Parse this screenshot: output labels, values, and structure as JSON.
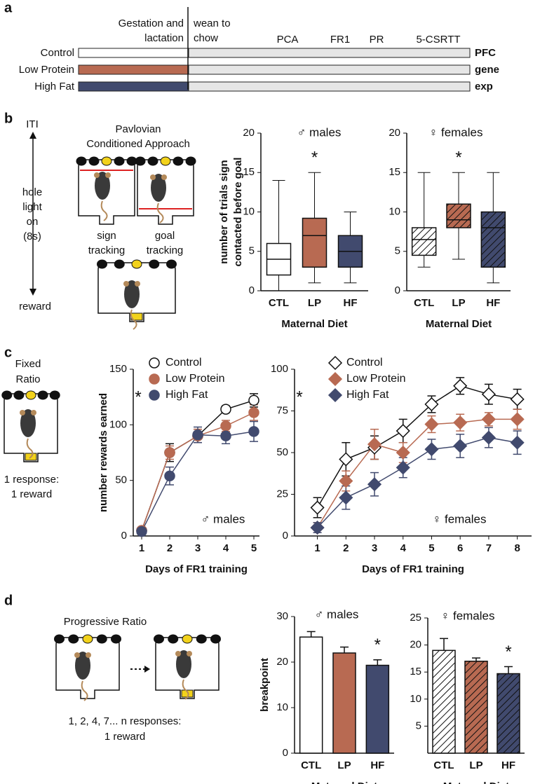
{
  "panel_labels": [
    "a",
    "b",
    "c",
    "d"
  ],
  "timeline": {
    "header_left": [
      "Gestation and",
      "lactation"
    ],
    "header_right": [
      "wean to",
      "chow"
    ],
    "stages": [
      "PCA",
      "FR1",
      "PR",
      "5-CSRTT"
    ],
    "groups": [
      {
        "label": "Control",
        "color": "#ffffff"
      },
      {
        "label": "Low Protein",
        "color": "#b86a52"
      },
      {
        "label": "High Fat",
        "color": "#414a6e"
      }
    ],
    "after_color": "#e6e6e6",
    "right_label": [
      "PFC",
      "gene",
      "exp"
    ]
  },
  "schematics": {
    "pca_timeline": [
      "ITI",
      "hole",
      "light",
      "on",
      "(8s)",
      "reward"
    ],
    "pca_title": [
      "Pavlovian",
      "Conditioned Approach"
    ],
    "sign": [
      "sign",
      "tracking"
    ],
    "goal": [
      "goal",
      "tracking"
    ],
    "fr_title": [
      "Fixed",
      "Ratio"
    ],
    "fr_rule": [
      "1 response:",
      "1 reward"
    ],
    "pr_title": "Progressive Ratio",
    "pr_rule": [
      "1, 2, 4, 7... n responses:",
      "1 reward"
    ]
  },
  "chart_data": [
    {
      "type": "box",
      "title": "♂ males",
      "ylabel": [
        "number of trials sign",
        "contacted before goal"
      ],
      "xlabel": "Maternal Diet",
      "categories": [
        "CTL",
        "LP",
        "HF"
      ],
      "colors": [
        "#ffffff",
        "#b86a52",
        "#414a6e"
      ],
      "hatch": false,
      "boxes": {
        "min": [
          0,
          1,
          1
        ],
        "q1": [
          2,
          3,
          3
        ],
        "median": [
          4,
          7,
          5
        ],
        "q3": [
          6,
          9.2,
          7
        ],
        "max": [
          14,
          15,
          10
        ]
      },
      "ylim": [
        0,
        20
      ],
      "yticks": [
        0,
        5,
        10,
        15,
        20
      ],
      "annotation": "*"
    },
    {
      "type": "box",
      "title": "♀ females",
      "xlabel": "Maternal Diet",
      "categories": [
        "CTL",
        "LP",
        "HF"
      ],
      "colors": [
        "#ffffff",
        "#b86a52",
        "#414a6e"
      ],
      "hatch": true,
      "boxes": {
        "min": [
          3,
          4,
          1
        ],
        "q1": [
          4.5,
          8,
          3
        ],
        "median": [
          6.5,
          9,
          8
        ],
        "q3": [
          8,
          11,
          10
        ],
        "max": [
          15,
          15,
          15
        ]
      },
      "ylim": [
        0,
        20
      ],
      "yticks": [
        0,
        5,
        10,
        15,
        20
      ],
      "annotation": "*"
    },
    {
      "type": "line",
      "title": "♂ males",
      "ylabel": "number rewards earned",
      "xlabel": "Days of FR1 training",
      "x": [
        1,
        2,
        3,
        4,
        5
      ],
      "xlim": [
        0.7,
        5.2
      ],
      "xticks": [
        1,
        2,
        3,
        4,
        5
      ],
      "ylim": [
        0,
        150
      ],
      "yticks": [
        0,
        50,
        100,
        150
      ],
      "legend": "upper left",
      "annotation": "*",
      "series": [
        {
          "name": "Control",
          "color": "#ffffff",
          "marker": "circle",
          "values": [
            5,
            75,
            90,
            114,
            122
          ],
          "errors": [
            2,
            8,
            6,
            3,
            6
          ]
        },
        {
          "name": "Low Protein",
          "color": "#b86a52",
          "marker": "circle",
          "values": [
            5,
            75,
            90,
            99,
            111
          ],
          "errors": [
            2,
            6,
            6,
            5,
            7
          ]
        },
        {
          "name": "High Fat",
          "color": "#414a6e",
          "marker": "circle",
          "values": [
            4,
            54,
            91,
            90,
            94
          ],
          "errors": [
            2,
            8,
            7,
            7,
            9
          ]
        }
      ]
    },
    {
      "type": "line",
      "title": "♀ females",
      "xlabel": "Days of FR1 training",
      "x": [
        1,
        2,
        3,
        4,
        5,
        6,
        7,
        8
      ],
      "xlim": [
        0.2,
        8.5
      ],
      "xticks": [
        1,
        2,
        3,
        4,
        5,
        6,
        7,
        8
      ],
      "ylim": [
        0,
        100
      ],
      "yticks": [
        0,
        25,
        50,
        75,
        100
      ],
      "legend": "upper left",
      "annotation": "*",
      "series": [
        {
          "name": "Control",
          "color": "#ffffff",
          "marker": "diamond",
          "values": [
            17,
            46,
            53,
            63,
            79,
            90,
            85,
            82
          ],
          "errors": [
            6,
            10,
            7,
            7,
            5,
            5,
            6,
            6
          ]
        },
        {
          "name": "Low Protein",
          "color": "#b86a52",
          "marker": "diamond",
          "values": [
            5,
            33,
            55,
            50,
            67,
            68,
            70,
            70
          ],
          "errors": [
            3,
            6,
            9,
            6,
            5,
            5,
            4,
            6
          ]
        },
        {
          "name": "High Fat",
          "color": "#414a6e",
          "marker": "diamond",
          "values": [
            5,
            23,
            31,
            41,
            52,
            54,
            59,
            56
          ],
          "errors": [
            3,
            7,
            7,
            6,
            6,
            7,
            6,
            7
          ]
        }
      ]
    },
    {
      "type": "bar",
      "title": "♂ males",
      "ylabel": "breakpoint",
      "xlabel": "Maternal Diet",
      "categories": [
        "CTL",
        "LP",
        "HF"
      ],
      "colors": [
        "#ffffff",
        "#b86a52",
        "#414a6e"
      ],
      "hatch": false,
      "values": [
        25.5,
        22,
        19.3
      ],
      "errors": [
        1.2,
        1.3,
        1.2
      ],
      "ylim": [
        0,
        30
      ],
      "yticks": [
        0,
        10,
        20,
        30
      ],
      "annotation": "*"
    },
    {
      "type": "bar",
      "title": "♀ females",
      "xlabel": "Maternal Diet",
      "categories": [
        "CTL",
        "LP",
        "HF"
      ],
      "colors": [
        "#ffffff",
        "#b86a52",
        "#414a6e"
      ],
      "hatch": true,
      "values": [
        19,
        17,
        14.7
      ],
      "errors": [
        2.2,
        0.6,
        1.3
      ],
      "ylim": [
        0,
        25
      ],
      "yticks": [
        5,
        10,
        15,
        20,
        25
      ],
      "annotation": "*"
    }
  ]
}
